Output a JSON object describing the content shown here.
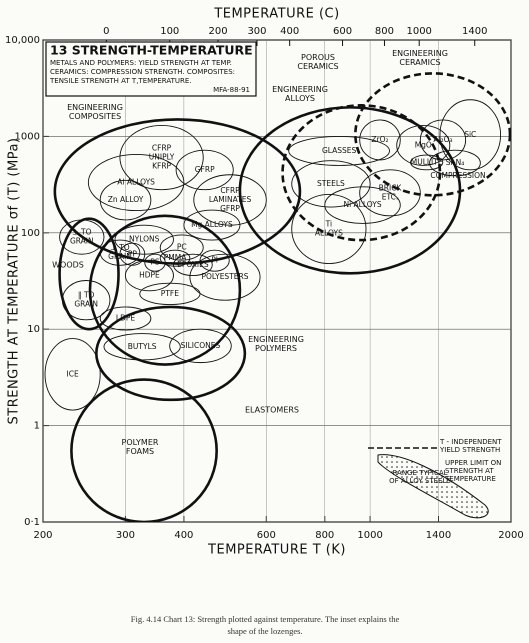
{
  "chart_data": {
    "type": "region-map",
    "x_label": "TEMPERATURE T (K)",
    "y_label": "STRENGTH AT TEMPERATURE σf (T) (MPa)",
    "xscale": "log",
    "yscale": "log",
    "xlim": [
      200,
      2000
    ],
    "ylim": [
      0.1,
      10000
    ],
    "xticks": [
      200,
      300,
      400,
      600,
      800,
      1000,
      1400,
      2000
    ],
    "yticks": [
      {
        "value": 0.1,
        "label": "0·1"
      },
      1,
      10,
      100,
      1000,
      {
        "value": 10000,
        "label": "10,000"
      }
    ],
    "grid": true,
    "top_axis": {
      "label": "TEMPERATURE (C)",
      "ticks": [
        0,
        100,
        200,
        300,
        400,
        600,
        800,
        1000,
        1400
      ]
    },
    "title_box": {
      "title": "13 STRENGTH-TEMPERATURE",
      "lines": [
        "METALS AND POLYMERS: YIELD STRENGTH AT TEMP.",
        "CERAMICS: COMPRESSION STRENGTH. COMPOSITES:",
        "TENSILE STRENGTH AT T,TEMPERATURE."
      ],
      "code": "MFA-88-91"
    },
    "regions": [
      {
        "label": [
          "ENGINEERING",
          "COMPOSITES"
        ],
        "outline": "bold",
        "T": [
          212,
          708
        ],
        "strength": [
          48,
          1500
        ]
      },
      {
        "label": [
          "ENGINEERING",
          "ALLOYS"
        ],
        "outline": "bold",
        "T": [
          527,
          1556
        ],
        "strength": [
          38,
          2000
        ]
      },
      {
        "label": [
          "POROUS",
          "CERAMICS"
        ],
        "outline": "bold-dashed",
        "T": [
          650,
          1410
        ],
        "strength": [
          84,
          2100
        ]
      },
      {
        "label": [
          "ENGINEERING",
          "CERAMICS"
        ],
        "outline": "bold-dashed",
        "T": [
          930,
          1990
        ],
        "strength": [
          245,
          4500
        ]
      },
      {
        "label": [
          "ENGINEERING",
          "POLYMERS"
        ],
        "outline": "bold",
        "T": [
          252,
          527
        ],
        "strength": [
          4.3,
          150
        ]
      },
      {
        "label": [
          "ELASTOMERS"
        ],
        "outline": "bold",
        "T": [
          260,
          540
        ],
        "strength": [
          1.85,
          17
        ]
      },
      {
        "label": [
          "WOODS"
        ],
        "outline": "bold",
        "T": [
          217,
          290
        ],
        "strength": [
          10,
          140
        ]
      },
      {
        "label": [
          "POLYMER",
          "FOAMS"
        ],
        "outline": "bold",
        "T": [
          230,
          470
        ],
        "strength": [
          0.1,
          3
        ]
      },
      {
        "label": [
          "CFRP",
          "UNIPLY",
          "KFRP"
        ],
        "outline": "thin",
        "T": [
          292,
          440
        ],
        "strength": [
          280,
          1300
        ]
      },
      {
        "label": [
          "GFRP"
        ],
        "outline": "thin",
        "T": [
          385,
          510
        ],
        "strength": [
          280,
          720
        ]
      },
      {
        "label": [
          "CFRP",
          "LAMINATES",
          "GFRP"
        ],
        "outline": "thin",
        "T": [
          420,
          600
        ],
        "strength": [
          120,
          400
        ]
      },
      {
        "label": [
          "Al ALLOYS"
        ],
        "outline": "thin",
        "T": [
          250,
          400
        ],
        "strength": [
          170,
          650
        ]
      },
      {
        "label": [
          "Zn ALLOY"
        ],
        "outline": "thin",
        "T": [
          265,
          340
        ],
        "strength": [
          136,
          350
        ]
      },
      {
        "label": [
          "Mg ALLOYS"
        ],
        "outline": "thin",
        "T": [
          400,
          527
        ],
        "strength": [
          84,
          172
        ]
      },
      {
        "label": [
          "GLASSES"
        ],
        "outline": "thin",
        "T": [
          670,
          1100
        ],
        "strength": [
          500,
          1000
        ]
      },
      {
        "label": [
          "STEELS"
        ],
        "outline": "thin",
        "T": [
          680,
          1000
        ],
        "strength": [
          185,
          560
        ]
      },
      {
        "label": [
          "Ni ALLOYS"
        ],
        "outline": "thin",
        "T": [
          800,
          1160
        ],
        "strength": [
          125,
          300
        ]
      },
      {
        "label": [
          "Ti",
          "ALLOYS"
        ],
        "outline": "thin",
        "T": [
          680,
          980
        ],
        "strength": [
          48,
          250
        ]
      },
      {
        "label": [
          "BRICK",
          "ETC."
        ],
        "outline": "thin",
        "T": [
          950,
          1280
        ],
        "strength": [
          150,
          450
        ]
      },
      {
        "label": [
          "ZrO₂"
        ],
        "outline": "thin",
        "T": [
          950,
          1160
        ],
        "strength": [
          570,
          1480
        ]
      },
      {
        "label": [
          "MgO"
        ],
        "outline": "thin",
        "T": [
          1140,
          1480
        ],
        "strength": [
          500,
          1300
        ]
      },
      {
        "label": [
          "Al₂O₃"
        ],
        "outline": "thin",
        "T": [
          1280,
          1600
        ],
        "strength": [
          570,
          1480
        ]
      },
      {
        "label": [
          "SiC"
        ],
        "outline": "thin",
        "T": [
          1410,
          1900
        ],
        "strength": [
          450,
          2400
        ]
      },
      {
        "label": [
          "Si₃N₄"
        ],
        "outline": "thin",
        "T": [
          1340,
          1720
        ],
        "strength": [
          390,
          720
        ]
      },
      {
        "label": [
          "MULLITE"
        ],
        "outline": "thin",
        "T": [
          1220,
          1430
        ],
        "strength": [
          450,
          640
        ]
      },
      {
        "label": [
          "NYLONS"
        ],
        "outline": "thin",
        "T": [
          285,
          380
        ],
        "strength": [
          60,
          120
        ]
      },
      {
        "label": [
          "PC"
        ],
        "outline": "thin",
        "T": [
          356,
          440
        ],
        "strength": [
          52,
          95
        ]
      },
      {
        "label": [
          "PP"
        ],
        "outline": "thin",
        "T": [
          292,
          330
        ],
        "strength": [
          46,
          78
        ]
      },
      {
        "label": [
          "HDPE"
        ],
        "outline": "thin",
        "T": [
          300,
          380
        ],
        "strength": [
          25,
          52
        ]
      },
      {
        "label": [
          "PS"
        ],
        "outline": "thin",
        "T": [
          330,
          365
        ],
        "strength": [
          40,
          60
        ]
      },
      {
        "label": [
          "PMMA"
        ],
        "outline": "thin",
        "T": [
          356,
          412
        ],
        "strength": [
          45,
          66
        ]
      },
      {
        "label": [
          "EPOXIES"
        ],
        "outline": "thin",
        "T": [
          380,
          460
        ],
        "strength": [
          36,
          60
        ]
      },
      {
        "label": [
          "PI"
        ],
        "outline": "thin",
        "T": [
          433,
          500
        ],
        "strength": [
          40,
          66
        ]
      },
      {
        "label": [
          "POLYESTERS"
        ],
        "outline": "thin",
        "T": [
          412,
          582
        ],
        "strength": [
          20,
          60
        ]
      },
      {
        "label": [
          "PTFE"
        ],
        "outline": "thin",
        "T": [
          322,
          433
        ],
        "strength": [
          18,
          30
        ]
      },
      {
        "label": [
          "LDPE"
        ],
        "outline": "thin",
        "T": [
          265,
          340
        ],
        "strength": [
          9.8,
          17
        ]
      },
      {
        "label": [
          "BUTYLS"
        ],
        "outline": "thin",
        "T": [
          270,
          393
        ],
        "strength": [
          4.8,
          9
        ]
      },
      {
        "label": [
          "SILICONES"
        ],
        "outline": "thin",
        "T": [
          373,
          505
        ],
        "strength": [
          4.5,
          10
        ]
      },
      {
        "label": [
          "ICE"
        ],
        "outline": "thin",
        "T": [
          202,
          265
        ],
        "strength": [
          1.45,
          8
        ]
      },
      {
        "label": [
          "⊥ TO",
          "GRAIN"
        ],
        "outline": "thin",
        "T": [
          217,
          270
        ],
        "strength": [
          60,
          136
        ]
      },
      {
        "label": [
          "⊥ TO",
          "GRAIN"
        ],
        "outline": "thin",
        "T": [
          265,
          322
        ],
        "strength": [
          46,
          84
        ]
      },
      {
        "label": [
          "‖ TO",
          "GRAIN"
        ],
        "outline": "thin",
        "T": [
          220,
          278
        ],
        "strength": [
          12.5,
          32
        ]
      }
    ],
    "annotations": [
      "COMPRESSION"
    ],
    "inset": {
      "independent": [
        "T - INDEPENDENT",
        "YIELD STRENGTH"
      ],
      "upper_limit": [
        "UPPER LIMIT ON",
        "STRENGTH AT",
        "TEMPERATURE"
      ],
      "range": [
        "RANGE TYPICAL",
        "OF ALLOY STEELS"
      ]
    }
  },
  "caption": [
    "Fig. 4.14 Chart 13: Strength plotted against temperature. The inset explains the",
    "shape of the lozenges."
  ]
}
